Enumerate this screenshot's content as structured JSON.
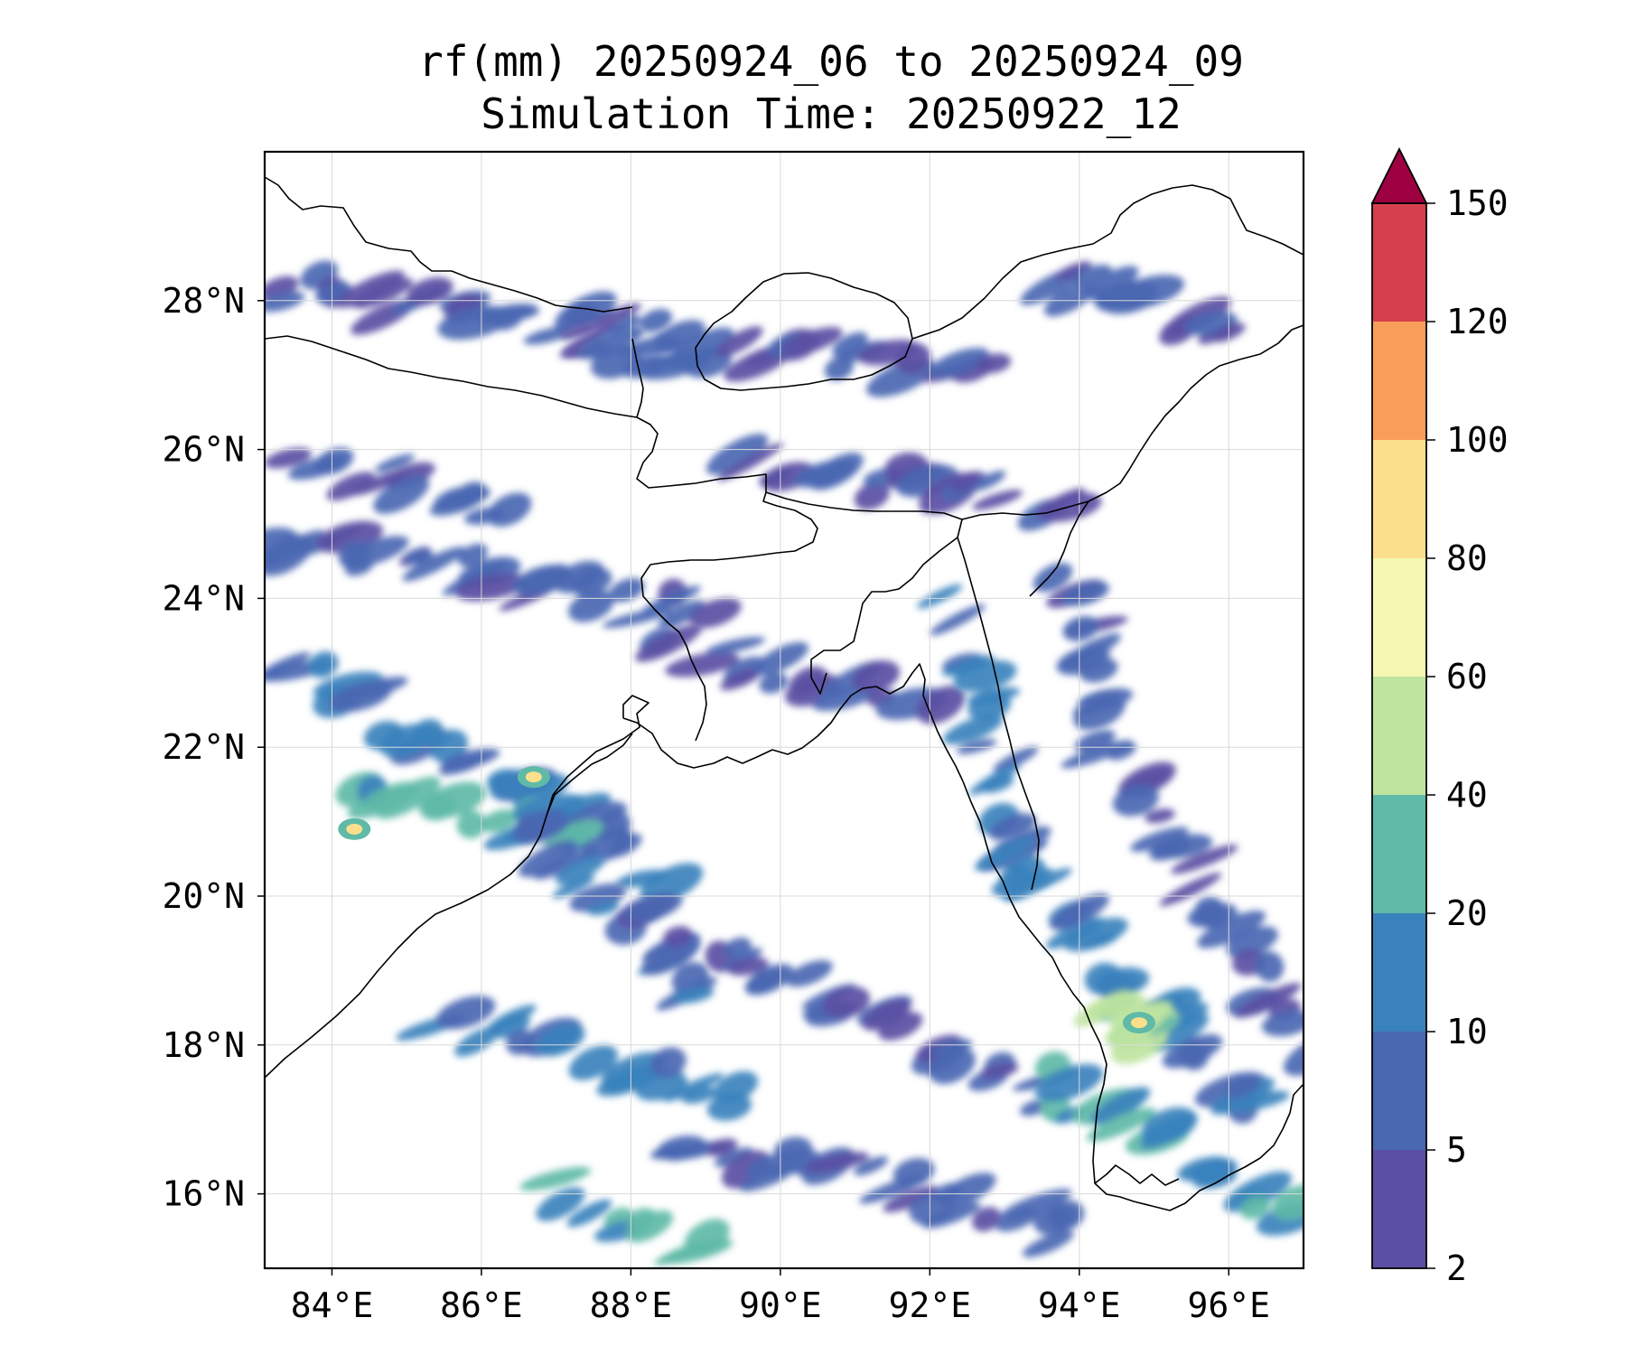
{
  "title": {
    "line1": "rf(mm) 20250924_06 to 20250924_09",
    "line2": "Simulation Time: 20250922_12"
  },
  "map": {
    "lon_range": [
      83.1,
      97.0
    ],
    "lat_range": [
      15.0,
      30.0
    ],
    "x_ticks": [
      "84°E",
      "86°E",
      "88°E",
      "90°E",
      "92°E",
      "94°E",
      "96°E"
    ],
    "x_tick_values": [
      84,
      86,
      88,
      90,
      92,
      94,
      96
    ],
    "y_ticks": [
      "16°N",
      "18°N",
      "20°N",
      "22°N",
      "24°N",
      "26°N",
      "28°N"
    ],
    "y_tick_values": [
      16,
      18,
      20,
      22,
      24,
      26,
      28
    ],
    "grid": true
  },
  "colorbar": {
    "levels": [
      "2",
      "5",
      "10",
      "20",
      "40",
      "60",
      "80",
      "100",
      "120",
      "150"
    ],
    "colors": [
      "#5a4fa3",
      "#4a67b2",
      "#3a82bd",
      "#5fbaa7",
      "#bfe4a0",
      "#f4f8b0",
      "#fbdf8c",
      "#f89e5a",
      "#d5404e",
      "#9e0142"
    ],
    "extend": "max"
  },
  "rain_bands": [
    {
      "lon": [
        83.3,
        88.5
      ],
      "lat": [
        28.2,
        27.5
      ],
      "level": 1
    },
    {
      "lon": [
        87.3,
        92.8
      ],
      "lat": [
        27.4,
        27.1
      ],
      "level": 1
    },
    {
      "lon": [
        93.5,
        96.2
      ],
      "lat": [
        28.4,
        27.5
      ],
      "level": 1
    },
    {
      "lon": [
        83.6,
        86.5
      ],
      "lat": [
        25.8,
        25.3
      ],
      "level": 1
    },
    {
      "lon": [
        89.6,
        93.8
      ],
      "lat": [
        25.7,
        25.3
      ],
      "level": 1
    },
    {
      "lon": [
        83.2,
        89.0
      ],
      "lat": [
        24.8,
        23.8
      ],
      "level": 1
    },
    {
      "lon": [
        88.5,
        92.0
      ],
      "lat": [
        23.3,
        22.7
      ],
      "level": 1
    },
    {
      "lon": [
        83.2,
        88.5
      ],
      "lat": [
        23.2,
        20.3
      ],
      "level": 2
    },
    {
      "lon": [
        84.3,
        87.0
      ],
      "lat": [
        21.3,
        20.9
      ],
      "level": 3
    },
    {
      "lon": [
        86.7,
        88.8
      ],
      "lat": [
        21.2,
        18.5
      ],
      "level": 2
    },
    {
      "lon": [
        88.0,
        93.5
      ],
      "lat": [
        19.8,
        17.3
      ],
      "level": 1
    },
    {
      "lon": [
        85.5,
        89.5
      ],
      "lat": [
        18.3,
        17.3
      ],
      "level": 2
    },
    {
      "lon": [
        87.0,
        89.0
      ],
      "lat": [
        16.0,
        15.2
      ],
      "level": 3
    },
    {
      "lon": [
        88.5,
        94.0
      ],
      "lat": [
        16.8,
        15.5
      ],
      "level": 1
    },
    {
      "lon": [
        92.3,
        93.5
      ],
      "lat": [
        23.8,
        20.0
      ],
      "level": 2
    },
    {
      "lon": [
        93.0,
        96.5
      ],
      "lat": [
        20.5,
        17.0
      ],
      "level": 2
    },
    {
      "lon": [
        93.5,
        97.0
      ],
      "lat": [
        17.5,
        15.8
      ],
      "level": 3
    },
    {
      "lon": [
        94.2,
        97.0
      ],
      "lat": [
        22.5,
        18.0
      ],
      "level": 1
    },
    {
      "lon": [
        94.5,
        95.0
      ],
      "lat": [
        18.6,
        18.1
      ],
      "level": 4
    },
    {
      "lon": [
        93.8,
        94.4
      ],
      "lat": [
        24.5,
        22.5
      ],
      "level": 1
    }
  ],
  "rain_spots": [
    {
      "lon": 84.3,
      "lat": 20.9,
      "level": 6
    },
    {
      "lon": 86.7,
      "lat": 21.6,
      "level": 6
    },
    {
      "lon": 94.8,
      "lat": 18.3,
      "level": 6
    }
  ]
}
